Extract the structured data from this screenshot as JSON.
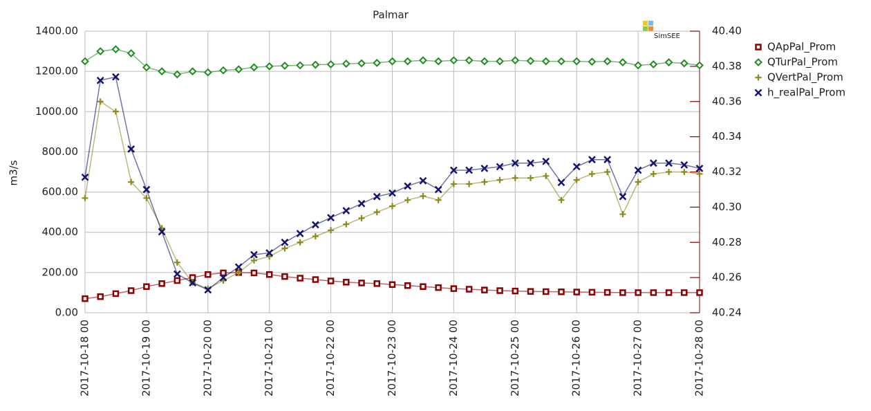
{
  "chart_data": {
    "type": "scatter",
    "title": "Palmar",
    "watermark": "SimSEE",
    "ylabel": "m3/s",
    "x": [
      "2017-10-18 00",
      "2017-10-18 06",
      "2017-10-18 12",
      "2017-10-18 18",
      "2017-10-19 00",
      "2017-10-19 06",
      "2017-10-19 12",
      "2017-10-19 18",
      "2017-10-20 00",
      "2017-10-20 06",
      "2017-10-20 12",
      "2017-10-20 18",
      "2017-10-21 00",
      "2017-10-21 06",
      "2017-10-21 12",
      "2017-10-21 18",
      "2017-10-22 00",
      "2017-10-22 06",
      "2017-10-22 12",
      "2017-10-22 18",
      "2017-10-23 00",
      "2017-10-23 06",
      "2017-10-23 12",
      "2017-10-23 18",
      "2017-10-24 00",
      "2017-10-24 06",
      "2017-10-24 12",
      "2017-10-24 18",
      "2017-10-25 00",
      "2017-10-25 06",
      "2017-10-25 12",
      "2017-10-25 18",
      "2017-10-26 00",
      "2017-10-26 06",
      "2017-10-26 12",
      "2017-10-26 18",
      "2017-10-27 00",
      "2017-10-27 06",
      "2017-10-27 12",
      "2017-10-27 18",
      "2017-10-28 00"
    ],
    "xlim": [
      "2017-10-18 00",
      "2017-10-28 00"
    ],
    "xticks": [
      "2017-10-18 00",
      "2017-10-19 00",
      "2017-10-20 00",
      "2017-10-21 00",
      "2017-10-22 00",
      "2017-10-23 00",
      "2017-10-24 00",
      "2017-10-25 00",
      "2017-10-26 00",
      "2017-10-27 00",
      "2017-10-28 00"
    ],
    "ylim": [
      0,
      1400
    ],
    "yticks": [
      {
        "value": 0,
        "label": "0.00"
      },
      {
        "value": 200,
        "label": "200.00"
      },
      {
        "value": 400,
        "label": "400.00"
      },
      {
        "value": 600,
        "label": "600.00"
      },
      {
        "value": 800,
        "label": "800.00"
      },
      {
        "value": 1000,
        "label": "1000.00"
      },
      {
        "value": 1200,
        "label": "1200.00"
      },
      {
        "value": 1400,
        "label": "1400.00"
      }
    ],
    "y2lim": [
      40.24,
      40.4
    ],
    "y2ticks": [
      40.24,
      40.26,
      40.28,
      {
        "value": 40.3,
        "label": "40.30"
      },
      40.32,
      40.34,
      40.36,
      40.38,
      {
        "value": 40.4,
        "label": "40.40"
      }
    ],
    "grid": true,
    "legend": "right",
    "series": [
      {
        "name": "QApPal_Prom",
        "color": "#8b0000",
        "marker": "square",
        "values": [
          70,
          80,
          95,
          110,
          130,
          145,
          160,
          175,
          190,
          198,
          200,
          198,
          190,
          180,
          172,
          165,
          158,
          152,
          148,
          145,
          140,
          135,
          130,
          125,
          120,
          117,
          113,
          110,
          108,
          106,
          105,
          104,
          103,
          102,
          101,
          100,
          100,
          100,
          100,
          100,
          100
        ]
      },
      {
        "name": "QTurPal_Prom",
        "color": "#1e8c1e",
        "marker": "diamond",
        "values": [
          1250,
          1300,
          1310,
          1290,
          1220,
          1200,
          1185,
          1200,
          1195,
          1205,
          1210,
          1220,
          1225,
          1228,
          1230,
          1233,
          1235,
          1238,
          1240,
          1242,
          1250,
          1250,
          1255,
          1250,
          1255,
          1255,
          1250,
          1250,
          1255,
          1252,
          1250,
          1250,
          1250,
          1248,
          1250,
          1245,
          1230,
          1235,
          1245,
          1240,
          1230
        ]
      },
      {
        "name": "QVertPal_Prom",
        "color": "#8c8a1e",
        "marker": "plus",
        "values": [
          570,
          1050,
          1000,
          650,
          570,
          420,
          250,
          150,
          120,
          160,
          200,
          260,
          280,
          320,
          350,
          380,
          410,
          440,
          470,
          500,
          530,
          560,
          580,
          560,
          640,
          640,
          650,
          660,
          670,
          670,
          680,
          560,
          660,
          690,
          700,
          490,
          650,
          690,
          700,
          700,
          690
        ]
      },
      {
        "name": "h_realPal_Prom",
        "color": "#14146e",
        "marker": "cross",
        "axis": "y2",
        "values": [
          40.317,
          40.372,
          40.374,
          40.333,
          40.31,
          40.286,
          40.262,
          40.257,
          40.253,
          40.26,
          40.266,
          40.273,
          40.274,
          40.28,
          40.285,
          40.29,
          40.294,
          40.298,
          40.302,
          40.306,
          40.308,
          40.312,
          40.315,
          40.31,
          40.321,
          40.321,
          40.322,
          40.323,
          40.325,
          40.325,
          40.326,
          40.314,
          40.323,
          40.327,
          40.327,
          40.306,
          40.321,
          40.325,
          40.325,
          40.324,
          40.322
        ]
      }
    ]
  }
}
